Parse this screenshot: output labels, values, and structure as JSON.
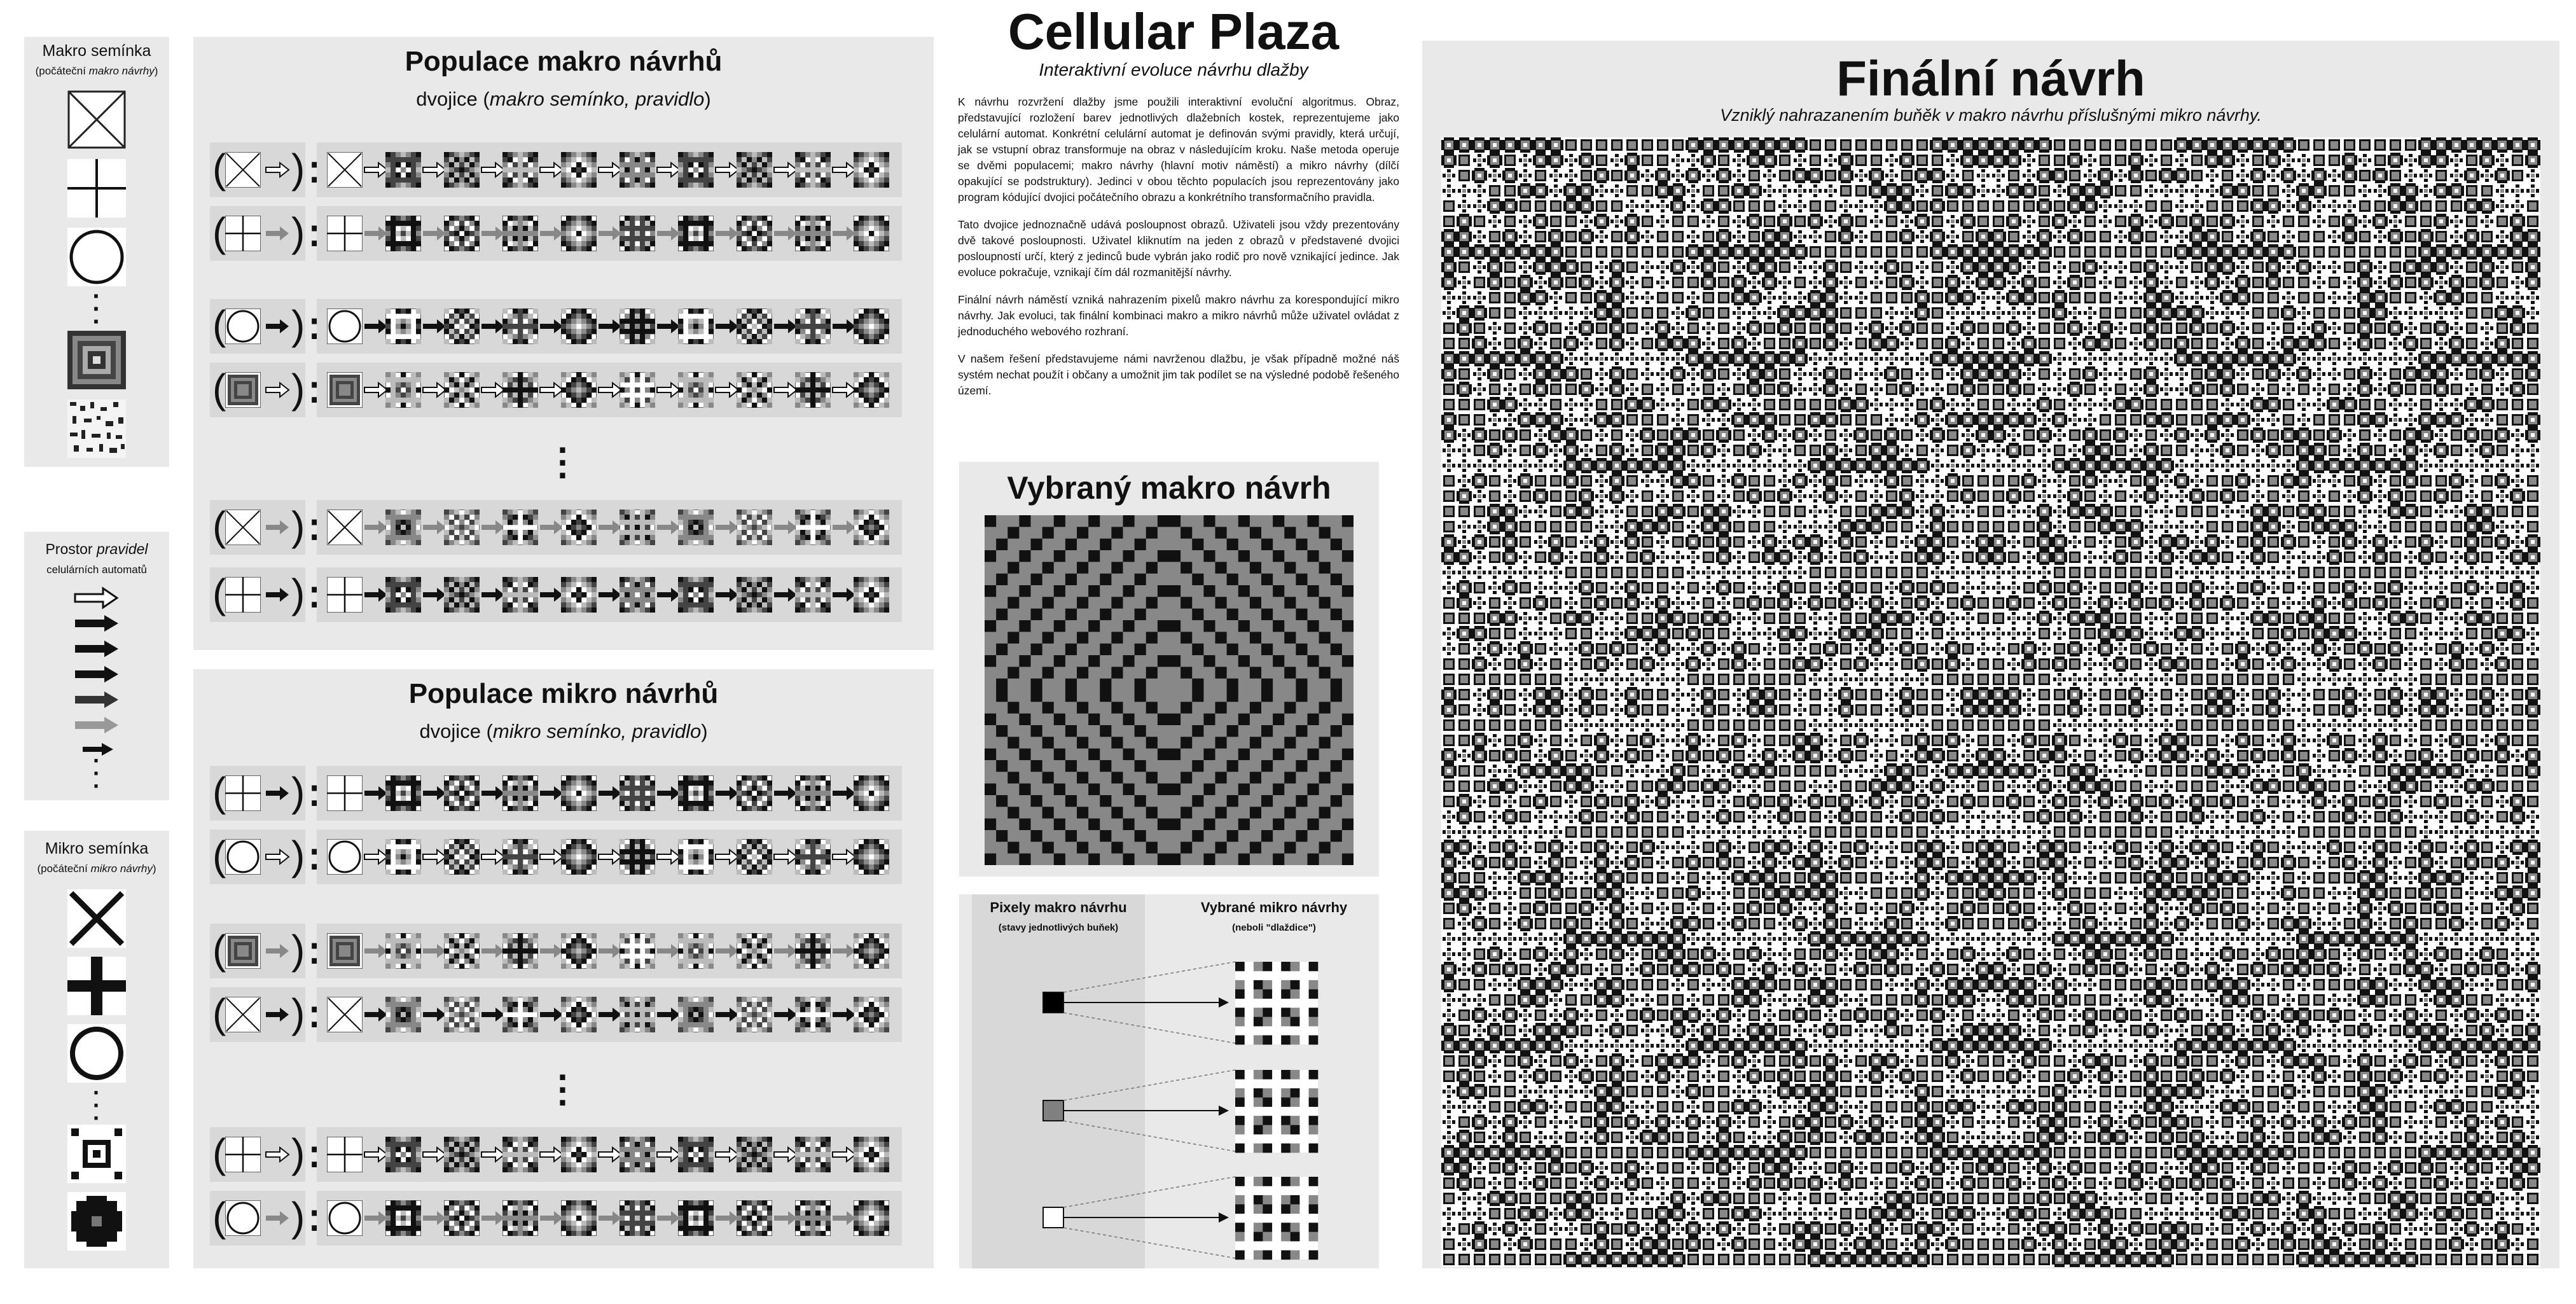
{
  "macro_seeds": {
    "title": "Makro semínka",
    "subtitle_prefix": "(počáteční ",
    "subtitle_em": "makro návrhy",
    "subtitle_suffix": ")"
  },
  "rule_space": {
    "title_prefix": "Prostor ",
    "title_em": "pravidel",
    "subtitle": "celulárních automatů"
  },
  "micro_seeds": {
    "title": "Mikro semínka",
    "subtitle_prefix": "(počáteční ",
    "subtitle_em": "mikro návrhy",
    "subtitle_suffix": ")"
  },
  "macro_population": {
    "title": "Populace makro návrhů",
    "subtitle_prefix": "dvojice (",
    "subtitle_em": "makro semínko, pravidlo",
    "subtitle_suffix": ")"
  },
  "micro_population": {
    "title": "Populace mikro návrhů",
    "subtitle_prefix": "dvojice (",
    "subtitle_em": "mikro semínko, pravidlo",
    "subtitle_suffix": ")"
  },
  "header": {
    "title": "Cellular Plaza",
    "subtitle": "Interaktivní evoluce návrhu dlažby"
  },
  "description": {
    "p1": "K návrhu rozvržení dlažby jsme použili interaktivní evoluční algoritmus. Obraz, představující rozložení barev jednotlivých dlažebních kostek, reprezentujeme jako celulární automat. Konkrétní celulární automat je definován svými pravidly, která určují, jak se vstupní obraz transformuje na obraz v následujícím kroku. Naše metoda operuje se dvěmi populacemi; makro návrhy (hlavní motiv náměstí) a mikro návrhy (dílčí opakující se podstruktury). Jedinci v obou těchto populacích jsou reprezentovány jako program kódující dvojici počátečního obrazu a konkrétního transformačního pravidla.",
    "p2": "Tato dvojice jednoznačně udává posloupnost obrazů. Uživateli jsou vždy prezentovány dvě takové posloupnosti. Uživatel kliknutím na jeden z obrazů v představené dvojici posloupností určí, který z jedinců bude vybrán jako rodič pro nově vznikající jedince. Jak evoluce pokračuje, vznikají čím dál rozmanitější návrhy.",
    "p3": "Finální návrh náměstí vzniká nahrazením pixelů makro návrhu za korespondující mikro návrhy. Jak evoluci, tak finální kombinaci makro a mikro návrhů může uživatel ovládat z jednoduchého webového rozhraní.",
    "p4": "V našem řešení představujeme námi navrženou dlažbu, je však případně možné náš systém nechat použít i občany a umožnit jim tak podílet se na výsledné podobě řešeného území."
  },
  "selected_macro": {
    "title": "Vybraný makro návrh"
  },
  "mapping": {
    "left_title": "Pixely makro návrhu",
    "left_subtitle": "(stavy jednotlivých buňek)",
    "right_title": "Vybrané mikro návrhy",
    "right_subtitle": "(neboli \"dlaždice\")",
    "states": [
      "#000000",
      "#808080",
      "#ffffff"
    ]
  },
  "final": {
    "title": "Finální návrh",
    "subtitle": "Vzniklý nahrazanením buňěk v makro návrhu příslušnými mikro návrhy."
  },
  "colors": {
    "panel": "#e9e9e9",
    "row": "#d8d8d8",
    "black": "#000000",
    "gray": "#808080",
    "white": "#ffffff"
  }
}
